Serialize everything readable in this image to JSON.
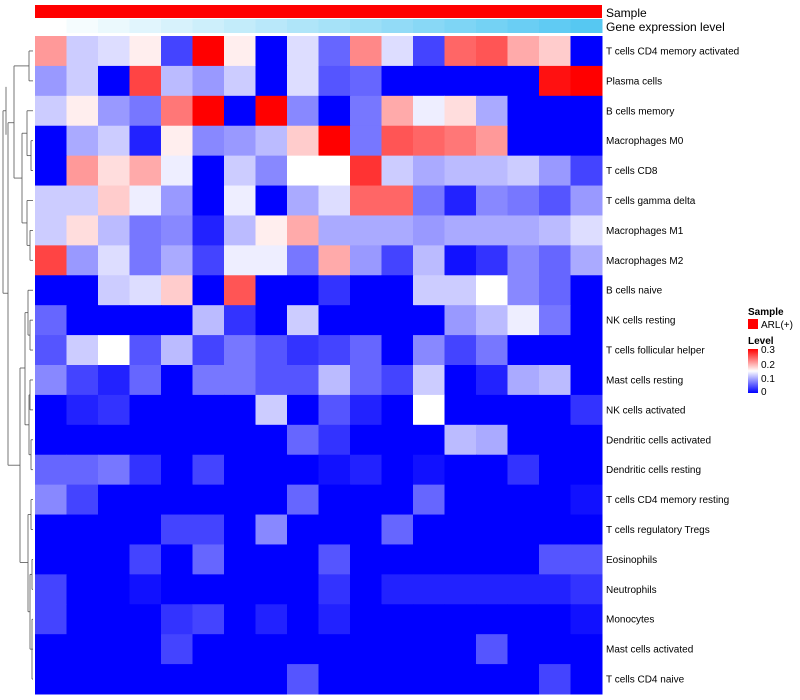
{
  "chart_data": {
    "type": "heatmap",
    "title": "",
    "column_annotations": [
      {
        "name": "Sample",
        "value_label": "ARL(+)",
        "color": "#ff0000"
      },
      {
        "name": "Gene expression level"
      }
    ],
    "gene_expression_level": [
      0.0,
      0.04,
      0.08,
      0.12,
      0.16,
      0.2,
      0.24,
      0.28,
      0.32,
      0.36,
      0.4,
      0.44,
      0.48,
      0.52,
      0.56,
      0.6,
      0.64,
      0.68
    ],
    "gene_expression_colors": {
      "low": "#ffffff",
      "high": "#56c8f2"
    },
    "rows": [
      "T cells CD4 memory activated",
      "Plasma cells",
      "B cells memory",
      "Macrophages M0",
      "T cells CD8",
      "T cells gamma delta",
      "Macrophages M1",
      "Macrophages M2",
      "B cells naive",
      "NK cells resting",
      "T cells follicular helper",
      "Mast cells resting",
      "NK cells activated",
      "Dendritic cells activated",
      "Dendritic cells resting",
      "T cells CD4 memory resting",
      "T cells regulatory  Tregs",
      "Eosinophils",
      "Neutrophils",
      "Monocytes",
      "Mast cells activated",
      "T cells CD4 naive"
    ],
    "values": [
      [
        0.21,
        0.12,
        0.13,
        0.16,
        0.04,
        0.3,
        0.16,
        0.0,
        0.13,
        0.06,
        0.22,
        0.13,
        0.04,
        0.24,
        0.25,
        0.2,
        0.18,
        0.0
      ],
      [
        0.09,
        0.12,
        0.0,
        0.26,
        0.11,
        0.09,
        0.12,
        0.0,
        0.13,
        0.05,
        0.06,
        0.0,
        0.0,
        0.0,
        0.0,
        0.0,
        0.29,
        0.3
      ],
      [
        0.12,
        0.16,
        0.09,
        0.07,
        0.23,
        0.3,
        0.0,
        0.3,
        0.08,
        0.0,
        0.07,
        0.2,
        0.14,
        0.17,
        0.1,
        0.0,
        0.0,
        0.0
      ],
      [
        0.0,
        0.1,
        0.12,
        0.02,
        0.16,
        0.08,
        0.09,
        0.11,
        0.18,
        0.3,
        0.07,
        0.25,
        0.24,
        0.23,
        0.21,
        0.0,
        0.0,
        0.0
      ],
      [
        0.0,
        0.21,
        0.17,
        0.2,
        0.14,
        0.0,
        0.12,
        0.08,
        0.15,
        0.15,
        0.27,
        0.12,
        0.1,
        0.11,
        0.11,
        0.12,
        0.09,
        0.04
      ],
      [
        0.12,
        0.12,
        0.18,
        0.14,
        0.09,
        0.0,
        0.14,
        0.0,
        0.1,
        0.13,
        0.24,
        0.24,
        0.07,
        0.02,
        0.08,
        0.07,
        0.05,
        0.09
      ],
      [
        0.12,
        0.17,
        0.11,
        0.07,
        0.08,
        0.02,
        0.11,
        0.16,
        0.2,
        0.1,
        0.1,
        0.1,
        0.09,
        0.1,
        0.1,
        0.1,
        0.11,
        0.13
      ],
      [
        0.26,
        0.09,
        0.13,
        0.07,
        0.1,
        0.04,
        0.14,
        0.14,
        0.07,
        0.2,
        0.09,
        0.04,
        0.11,
        0.01,
        0.03,
        0.08,
        0.06,
        0.1
      ],
      [
        0.0,
        0.0,
        0.12,
        0.13,
        0.18,
        0.0,
        0.25,
        0.0,
        0.0,
        0.03,
        0.0,
        0.0,
        0.12,
        0.12,
        0.15,
        0.08,
        0.06,
        0.0
      ],
      [
        0.06,
        0.0,
        0.0,
        0.0,
        0.0,
        0.11,
        0.03,
        0.0,
        0.12,
        0.0,
        0.0,
        0.0,
        0.0,
        0.09,
        0.11,
        0.14,
        0.07,
        0.0
      ],
      [
        0.05,
        0.12,
        0.15,
        0.05,
        0.11,
        0.04,
        0.07,
        0.05,
        0.03,
        0.04,
        0.06,
        0.0,
        0.08,
        0.04,
        0.07,
        0.0,
        0.0,
        0.0
      ],
      [
        0.08,
        0.04,
        0.02,
        0.06,
        0.0,
        0.07,
        0.07,
        0.05,
        0.05,
        0.11,
        0.06,
        0.04,
        0.12,
        0.0,
        0.02,
        0.1,
        0.11,
        0.0
      ],
      [
        0.0,
        0.02,
        0.03,
        0.0,
        0.0,
        0.0,
        0.0,
        0.12,
        0.0,
        0.05,
        0.02,
        0.0,
        0.15,
        0.0,
        0.0,
        0.0,
        0.0,
        0.03
      ],
      [
        0.0,
        0.0,
        0.0,
        0.0,
        0.0,
        0.0,
        0.0,
        0.0,
        0.06,
        0.03,
        0.0,
        0.0,
        0.0,
        0.11,
        0.1,
        0.0,
        0.0,
        0.0
      ],
      [
        0.06,
        0.06,
        0.07,
        0.03,
        0.0,
        0.04,
        0.0,
        0.0,
        0.0,
        0.01,
        0.02,
        0.0,
        0.01,
        0.0,
        0.0,
        0.03,
        0.0,
        0.0
      ],
      [
        0.08,
        0.04,
        0.0,
        0.0,
        0.0,
        0.0,
        0.0,
        0.0,
        0.06,
        0.0,
        0.0,
        0.0,
        0.06,
        0.0,
        0.0,
        0.0,
        0.0,
        0.01
      ],
      [
        0.0,
        0.0,
        0.0,
        0.0,
        0.04,
        0.04,
        0.0,
        0.08,
        0.0,
        0.0,
        0.0,
        0.06,
        0.0,
        0.0,
        0.0,
        0.0,
        0.0,
        0.0
      ],
      [
        0.0,
        0.0,
        0.0,
        0.04,
        0.0,
        0.06,
        0.0,
        0.0,
        0.0,
        0.05,
        0.0,
        0.0,
        0.0,
        0.0,
        0.0,
        0.0,
        0.05,
        0.05
      ],
      [
        0.04,
        0.0,
        0.0,
        0.01,
        0.0,
        0.0,
        0.0,
        0.0,
        0.0,
        0.03,
        0.0,
        0.02,
        0.02,
        0.02,
        0.02,
        0.02,
        0.02,
        0.03
      ],
      [
        0.04,
        0.0,
        0.0,
        0.0,
        0.03,
        0.04,
        0.0,
        0.02,
        0.0,
        0.02,
        0.0,
        0.0,
        0.0,
        0.0,
        0.0,
        0.0,
        0.0,
        0.01
      ],
      [
        0.0,
        0.0,
        0.0,
        0.0,
        0.04,
        0.0,
        0.0,
        0.0,
        0.0,
        0.0,
        0.0,
        0.0,
        0.0,
        0.0,
        0.05,
        0.0,
        0.0,
        0.0
      ],
      [
        0.0,
        0.0,
        0.0,
        0.0,
        0.0,
        0.0,
        0.0,
        0.0,
        0.05,
        0.0,
        0.0,
        0.0,
        0.0,
        0.0,
        0.0,
        0.0,
        0.04,
        0.0
      ]
    ],
    "color_scale": {
      "min": 0,
      "mid": 0.15,
      "max": 0.3,
      "colors": [
        "#0000ff",
        "#ffffff",
        "#ff0000"
      ]
    },
    "legend": {
      "sample_title": "Sample",
      "sample_item": "ARL(+)",
      "level_title": "Level",
      "level_ticks": [
        "0.3",
        "0.2",
        "0.1",
        "0"
      ],
      "placement": "right"
    }
  }
}
